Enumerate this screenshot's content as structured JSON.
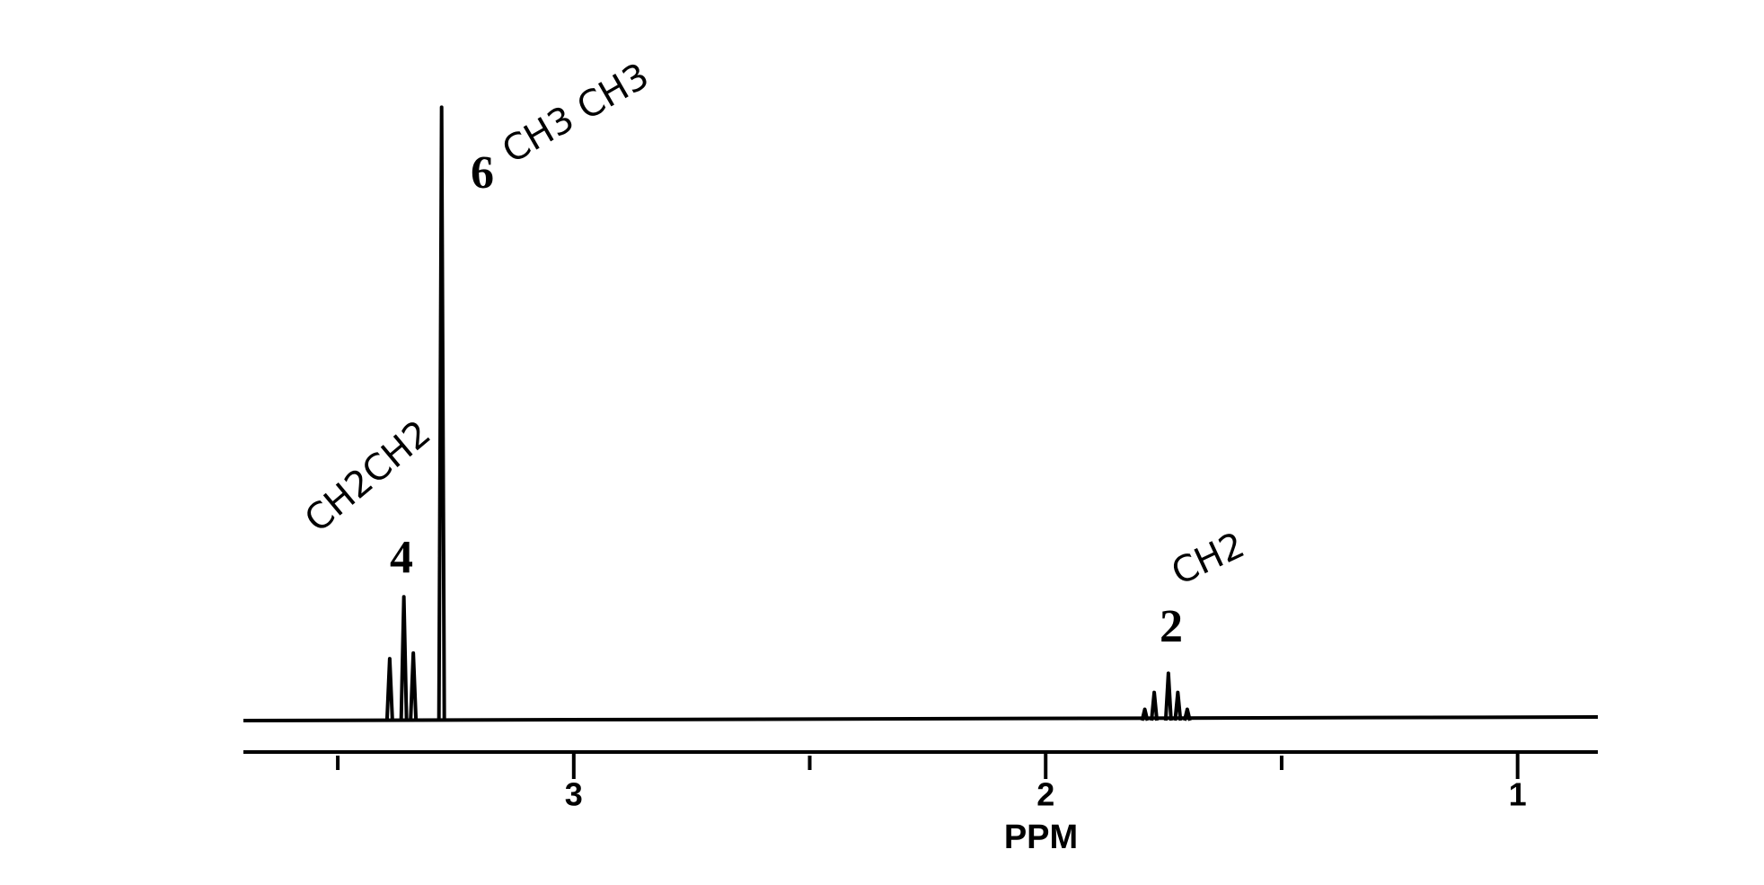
{
  "chart_data": {
    "type": "spectrum",
    "x_label": "PPM",
    "xlim": [
      3.7,
      0.83
    ],
    "xticks": [
      3,
      2,
      1
    ],
    "minor_xticks": [
      3.5,
      2.5,
      1.5
    ],
    "ylim": [
      0,
      560
    ],
    "color": "#000000",
    "peaks": {
      "x": [
        3.39,
        3.36,
        3.34,
        3.28,
        1.79,
        1.77,
        1.74,
        1.72,
        1.7
      ],
      "values": [
        55,
        110,
        60,
        545,
        10,
        25,
        42,
        25,
        10
      ]
    },
    "annotations": [
      "6",
      "4",
      "2",
      "CH3 CH3",
      "CH2CH2",
      "CH2"
    ]
  }
}
